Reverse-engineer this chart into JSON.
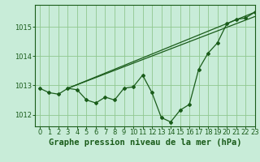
{
  "background_color": "#c8ecd8",
  "grid_color": "#90c890",
  "line_color": "#1a5c1a",
  "title": "Graphe pression niveau de la mer (hPa)",
  "xlim": [
    -0.5,
    23
  ],
  "ylim": [
    1011.6,
    1015.75
  ],
  "yticks": [
    1012,
    1013,
    1014,
    1015
  ],
  "xticks": [
    0,
    1,
    2,
    3,
    4,
    5,
    6,
    7,
    8,
    9,
    10,
    11,
    12,
    13,
    14,
    15,
    16,
    17,
    18,
    19,
    20,
    21,
    22,
    23
  ],
  "line1_x": [
    0,
    1,
    2,
    3,
    4,
    5,
    6,
    7,
    8,
    9,
    10,
    11,
    12,
    13,
    14,
    15,
    16,
    17,
    18,
    19,
    20,
    21,
    22,
    23
  ],
  "line1_y": [
    1012.9,
    1012.75,
    1012.7,
    1012.9,
    1012.85,
    1012.5,
    1012.4,
    1012.6,
    1012.5,
    1012.9,
    1012.95,
    1013.35,
    1012.75,
    1011.9,
    1011.75,
    1012.15,
    1012.35,
    1013.55,
    1014.1,
    1014.45,
    1015.1,
    1015.25,
    1015.3,
    1015.5
  ],
  "line2_x": [
    3,
    23
  ],
  "line2_y": [
    1012.9,
    1015.5
  ],
  "line3_x": [
    3,
    23
  ],
  "line3_y": [
    1012.9,
    1015.35
  ],
  "tick_fontsize": 6,
  "title_fontsize": 7.5
}
